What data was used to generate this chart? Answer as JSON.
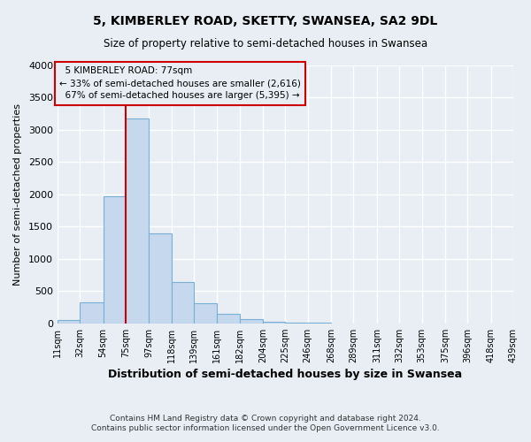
{
  "title": "5, KIMBERLEY ROAD, SKETTY, SWANSEA, SA2 9DL",
  "subtitle": "Size of property relative to semi-detached houses in Swansea",
  "xlabel": "Distribution of semi-detached houses by size in Swansea",
  "ylabel": "Number of semi-detached properties",
  "bar_color": "#c5d8ed",
  "bar_edge_color": "#7ab0d4",
  "background_color": "#e8eef4",
  "grid_color": "#ffffff",
  "annotation_box_edge": "#cc0000",
  "vline_color": "#cc0000",
  "bin_edges": [
    11,
    32,
    54,
    75,
    97,
    118,
    139,
    161,
    182,
    204,
    225,
    246,
    268,
    289,
    311,
    332,
    353,
    375,
    396,
    418,
    439
  ],
  "bin_labels": [
    "11sqm",
    "32sqm",
    "54sqm",
    "75sqm",
    "97sqm",
    "118sqm",
    "139sqm",
    "161sqm",
    "182sqm",
    "204sqm",
    "225sqm",
    "246sqm",
    "268sqm",
    "289sqm",
    "311sqm",
    "332sqm",
    "353sqm",
    "375sqm",
    "396sqm",
    "418sqm",
    "439sqm"
  ],
  "counts": [
    50,
    320,
    1975,
    3175,
    1400,
    640,
    305,
    140,
    65,
    30,
    15,
    5,
    0,
    0,
    0,
    0,
    0,
    0,
    0,
    0
  ],
  "ylim": [
    0,
    4000
  ],
  "yticks": [
    0,
    500,
    1000,
    1500,
    2000,
    2500,
    3000,
    3500,
    4000
  ],
  "property_label": "5 KIMBERLEY ROAD: 77sqm",
  "pct_smaller": 33,
  "pct_larger": 67,
  "num_smaller": "2,616",
  "num_larger": "5,395",
  "vline_x": 75,
  "footer_line1": "Contains HM Land Registry data © Crown copyright and database right 2024.",
  "footer_line2": "Contains public sector information licensed under the Open Government Licence v3.0."
}
